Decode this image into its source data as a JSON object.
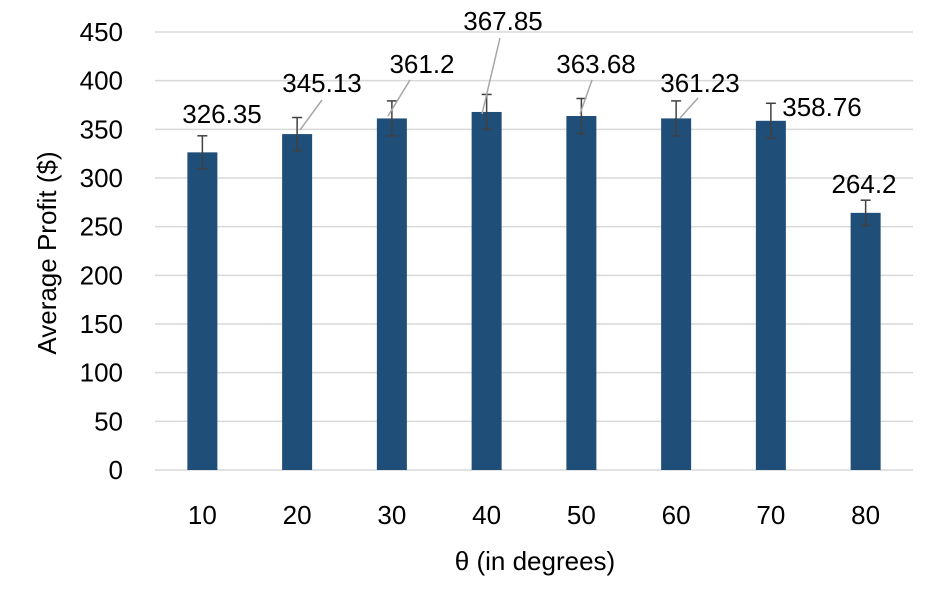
{
  "colors": {
    "bar": "#1f4e79",
    "grid": "#d9d9d9",
    "error_bar": "#404040",
    "leader_line": "#a6a6a6",
    "text": "#000000"
  },
  "chart_data": {
    "type": "bar",
    "title": "",
    "xlabel": "θ (in degrees)",
    "ylabel": "Average Profit ($)",
    "ylim": [
      0,
      450
    ],
    "y_ticks": [
      0,
      50,
      100,
      150,
      200,
      250,
      300,
      350,
      400,
      450
    ],
    "y_tick_labels": [
      "0",
      "50",
      "100",
      "150",
      "200",
      "250",
      "300",
      "350",
      "400",
      "450"
    ],
    "categories": [
      "10",
      "20",
      "30",
      "40",
      "50",
      "60",
      "70",
      "80"
    ],
    "values": [
      326.35,
      345.13,
      361.2,
      367.85,
      363.68,
      361.23,
      358.76,
      264.2
    ],
    "data_labels": [
      "326.35",
      "345.13",
      "361.2",
      "367.85",
      "363.68",
      "361.23",
      "358.76",
      "264.2"
    ],
    "error": [
      17,
      17,
      18,
      18,
      18,
      18,
      18,
      13
    ],
    "grid": true,
    "legend": "none"
  }
}
